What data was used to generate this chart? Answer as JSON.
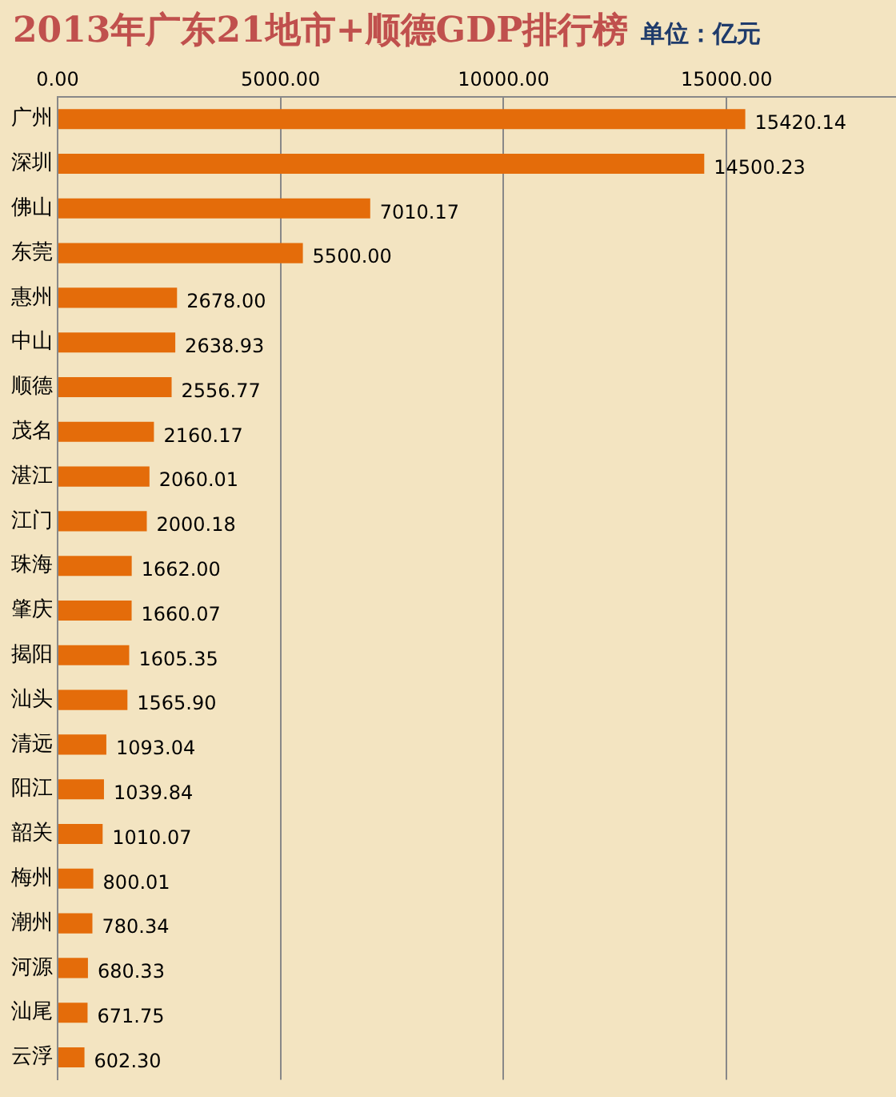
{
  "chart_data": {
    "type": "bar",
    "orientation": "horizontal",
    "title": "2013年广东21地市+顺德GDP排行榜",
    "subtitle": "单位：亿元",
    "categories": [
      "广州",
      "深圳",
      "佛山",
      "东莞",
      "惠州",
      "中山",
      "顺德",
      "茂名",
      "湛江",
      "江门",
      "珠海",
      "肇庆",
      "揭阳",
      "汕头",
      "清远",
      "阳江",
      "韶关",
      "梅州",
      "潮州",
      "河源",
      "汕尾",
      "云浮"
    ],
    "values": [
      15420.14,
      14500.23,
      7010.17,
      5500,
      2678,
      2638.93,
      2556.77,
      2160.17,
      2060.01,
      2000.18,
      1662,
      1660.07,
      1605.35,
      1565.9,
      1093.04,
      1039.84,
      1010.07,
      800.01,
      780.34,
      680.33,
      671.75,
      602.3
    ],
    "value_labels": [
      "15420.14",
      "14500.23",
      "7010.17",
      "5500.00",
      "2678.00",
      "2638.93",
      "2556.77",
      "2160.17",
      "2060.01",
      "2000.18",
      "1662.00",
      "1660.07",
      "1605.35",
      "1565.90",
      "1093.04",
      "1039.84",
      "1010.07",
      "800.01",
      "780.34",
      "680.33",
      "671.75",
      "602.30"
    ],
    "color": "#e46c0a",
    "xlim": [
      0,
      18800
    ],
    "xticks": [
      {
        "value": 0,
        "label": "0.00"
      },
      {
        "value": 5000,
        "label": "5000.00"
      },
      {
        "value": 10000,
        "label": "10000.00"
      },
      {
        "value": 15000,
        "label": "15000.00"
      }
    ],
    "grid": "x",
    "legend": false
  }
}
